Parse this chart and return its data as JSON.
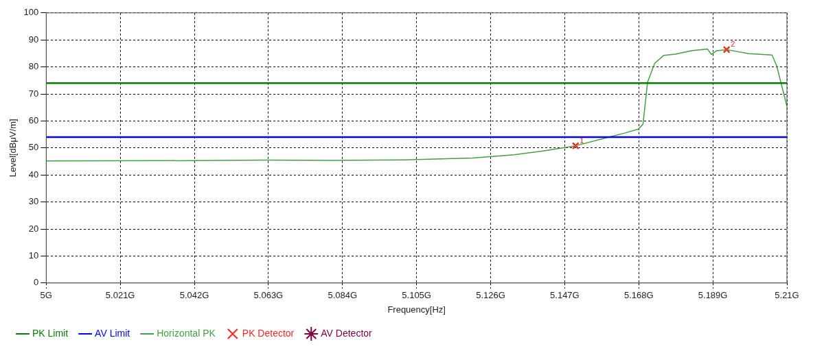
{
  "chart_data": {
    "type": "line",
    "xlabel": "Frequency[Hz]",
    "ylabel": "Level[dBμV/m]",
    "xlim": [
      5,
      5.21
    ],
    "ylim": [
      0,
      100
    ],
    "xticks": [
      {
        "value": 5,
        "label": "5G"
      },
      {
        "value": 5.021,
        "label": "5.021G"
      },
      {
        "value": 5.042,
        "label": "5.042G"
      },
      {
        "value": 5.063,
        "label": "5.063G"
      },
      {
        "value": 5.084,
        "label": "5.084G"
      },
      {
        "value": 5.105,
        "label": "5.105G"
      },
      {
        "value": 5.126,
        "label": "5.126G"
      },
      {
        "value": 5.147,
        "label": "5.147G"
      },
      {
        "value": 5.168,
        "label": "5.168G"
      },
      {
        "value": 5.189,
        "label": "5.189G"
      },
      {
        "value": 5.21,
        "label": "5.21G"
      }
    ],
    "yticks": [
      0,
      10,
      20,
      30,
      40,
      50,
      60,
      70,
      80,
      90,
      100
    ],
    "grid": true,
    "legend": "bottom left",
    "line_style": "solid",
    "marker": "none",
    "series": [
      {
        "name": "PK Limit",
        "color": "#008000",
        "x": [
          5,
          5.21
        ],
        "values": [
          74,
          74
        ]
      },
      {
        "name": "AV Limit",
        "color": "#0000ff",
        "x": [
          5,
          5.21
        ],
        "values": [
          54,
          54
        ]
      },
      {
        "name": "Horizontal PK",
        "color": "#3fa33f",
        "x": [
          5,
          5.0427,
          5.0622,
          5.0818,
          5.1014,
          5.1209,
          5.1327,
          5.1405,
          5.1501,
          5.1601,
          5.164,
          5.1679,
          5.1692,
          5.1705,
          5.1725,
          5.1751,
          5.1784,
          5.1829,
          5.1875,
          5.1886,
          5.1901,
          5.1929,
          5.1992,
          5.2058,
          5.2071,
          5.21
        ],
        "values": [
          45.2,
          45.3,
          45.5,
          45.4,
          45.6,
          46.3,
          47.5,
          48.8,
          50.8,
          54.2,
          55.5,
          57,
          58.8,
          74.4,
          81.3,
          84.3,
          84.7,
          86,
          86.6,
          84.6,
          86,
          86.4,
          84.9,
          84.4,
          80.4,
          65.5
        ]
      },
      {
        "name": "PK Detector",
        "type": "scatter",
        "marker": "cross",
        "color": "#ff2020",
        "x": [
          5.1501,
          5.1929
        ],
        "values": [
          50.8,
          86.4
        ]
      },
      {
        "name": "AV Detector",
        "type": "scatter",
        "marker": "star",
        "color": "#800040"
      }
    ],
    "annotations": [
      {
        "text": "1",
        "x": 5.1501,
        "y": 50.8
      },
      {
        "text": "2",
        "x": 5.1929,
        "y": 86.4
      }
    ]
  }
}
